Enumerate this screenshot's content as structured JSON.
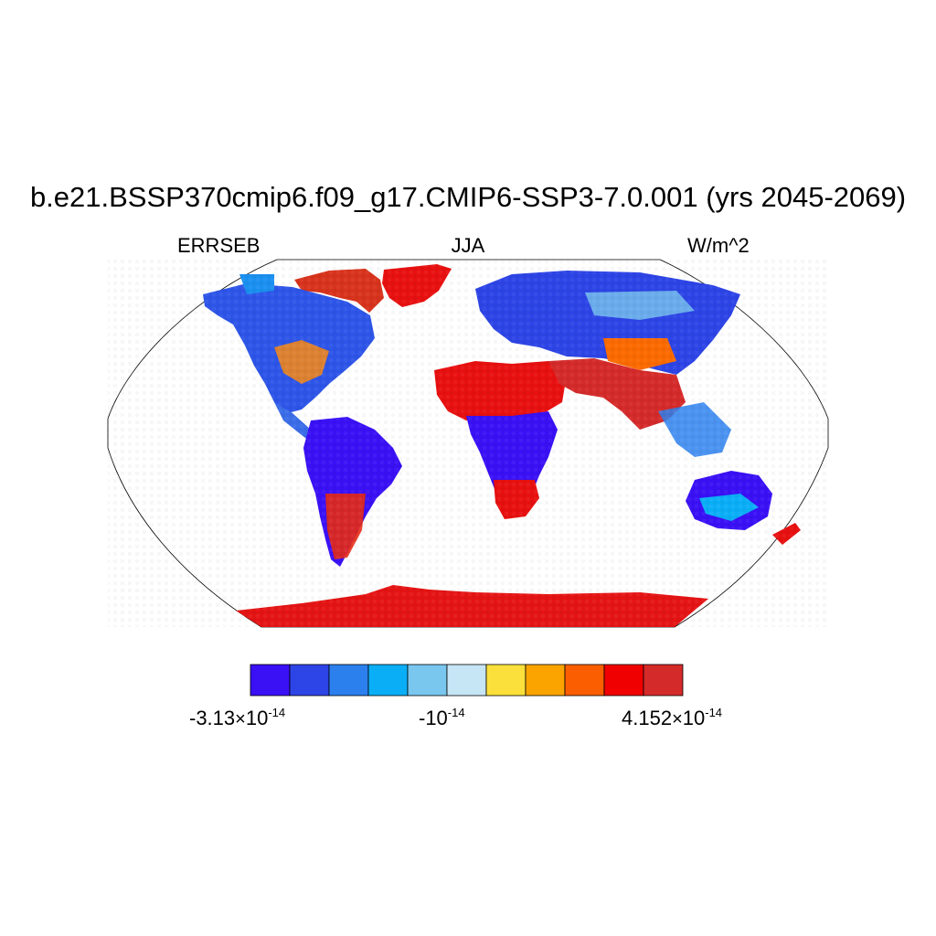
{
  "title": "b.e21.BSSP370cmip6.f09_g17.CMIP6-SSP3-7.0.001 (yrs 2045-2069)",
  "subtitle_left": "ERRSEB",
  "subtitle_center": "JJA",
  "subtitle_right": "W/m^2",
  "colorbar": {
    "colors": [
      "#3a10f5",
      "#2d44e6",
      "#2b80ee",
      "#0aaef7",
      "#79c6ee",
      "#c6e5f5",
      "#fbe03c",
      "#fba400",
      "#fb5e00",
      "#f00000",
      "#d52a2a"
    ],
    "labels": [
      {
        "mantissa": "-3.13",
        "exponent": "-14",
        "prefix": "",
        "position": "left"
      },
      {
        "mantissa": "",
        "exponent": "-14",
        "prefix": "-10",
        "position": "center"
      },
      {
        "mantissa": "4.152",
        "exponent": "-14",
        "prefix": "",
        "position": "right"
      }
    ]
  },
  "map": {
    "projection": "Robinson",
    "land_regions": [
      {
        "name": "Greenland",
        "color_class": "red"
      },
      {
        "name": "North America",
        "color_class": "blue"
      },
      {
        "name": "South America",
        "color_class": "blue"
      },
      {
        "name": "Africa north",
        "color_class": "red"
      },
      {
        "name": "Africa central",
        "color_class": "blue"
      },
      {
        "name": "Europe/Russia",
        "color_class": "blue"
      },
      {
        "name": "Arabia/India",
        "color_class": "red"
      },
      {
        "name": "Australia",
        "color_class": "blue"
      },
      {
        "name": "Antarctica",
        "color_class": "red"
      }
    ]
  }
}
